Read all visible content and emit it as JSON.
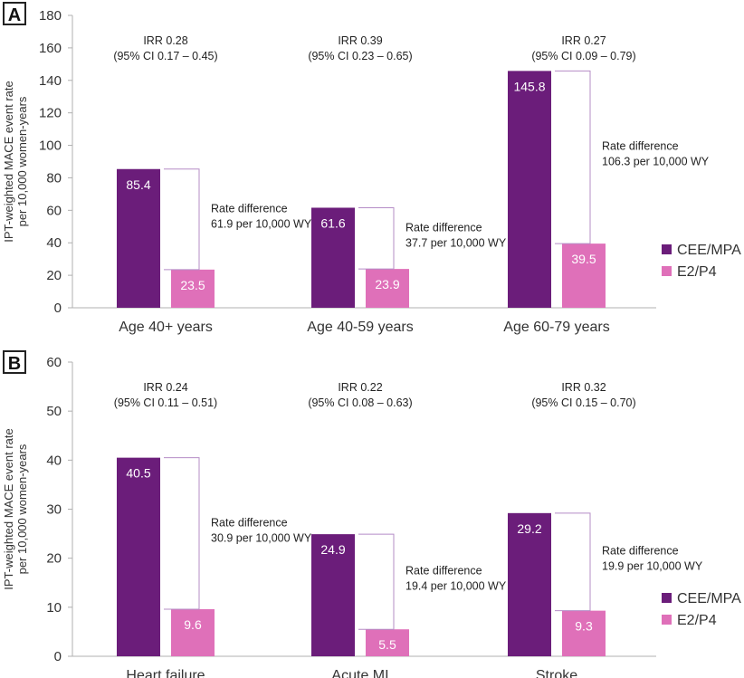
{
  "colors": {
    "cee": "#6b1d7a",
    "e2": "#df70b9",
    "axis": "#b0b0b0",
    "text": "#333333",
    "bracket": "#b58cc6"
  },
  "y_axis_label_line1": "IPT-weighted MACE event rate",
  "y_axis_label_line2": "per 10,000 women-years",
  "legend": [
    "CEE/MPA",
    "E2/P4"
  ],
  "chart_data": [
    {
      "type": "bar",
      "panel_label": "A",
      "title": "",
      "ylim": [
        0,
        180
      ],
      "yticks": [
        0,
        20,
        40,
        60,
        80,
        100,
        120,
        140,
        160,
        180
      ],
      "categories": [
        "Age 40+ years",
        "Age 40-59 years",
        "Age 60-79 years"
      ],
      "series": [
        {
          "name": "CEE/MPA",
          "values": [
            85.4,
            61.6,
            145.8
          ]
        },
        {
          "name": "E2/P4",
          "values": [
            23.5,
            23.9,
            39.5
          ]
        }
      ],
      "irr": [
        "IRR 0.28",
        "IRR 0.39",
        "IRR 0.27"
      ],
      "ci": [
        "(95% CI 0.17 – 0.45)",
        "(95% CI 0.23 – 0.65)",
        "(95% CI 0.09 – 0.79)"
      ],
      "rate_diff_label": [
        "Rate difference",
        "Rate difference",
        "Rate difference"
      ],
      "rate_diff_value": [
        "61.9 per 10,000 WY",
        "37.7 per 10,000 WY",
        "106.3 per 10,000 WY"
      ],
      "legend": [
        "CEE/MPA",
        "E2/P4"
      ]
    },
    {
      "type": "bar",
      "panel_label": "B",
      "title": "",
      "ylim": [
        0,
        60
      ],
      "yticks": [
        0,
        10,
        20,
        30,
        40,
        50,
        60
      ],
      "categories": [
        "Heart failure",
        "Acute MI",
        "Stroke"
      ],
      "series": [
        {
          "name": "CEE/MPA",
          "values": [
            40.5,
            24.9,
            29.2
          ]
        },
        {
          "name": "E2/P4",
          "values": [
            9.6,
            5.5,
            9.3
          ]
        }
      ],
      "irr": [
        "IRR 0.24",
        "IRR 0.22",
        "IRR 0.32"
      ],
      "ci": [
        "(95% CI 0.11 – 0.51)",
        "(95% CI 0.08 – 0.63)",
        "(95% CI 0.15 – 0.70)"
      ],
      "rate_diff_label": [
        "Rate difference",
        "Rate difference",
        "Rate difference"
      ],
      "rate_diff_value": [
        "30.9 per 10,000 WY",
        "19.4 per 10,000 WY",
        "19.9 per 10,000 WY"
      ],
      "legend": [
        "CEE/MPA",
        "E2/P4"
      ]
    }
  ]
}
